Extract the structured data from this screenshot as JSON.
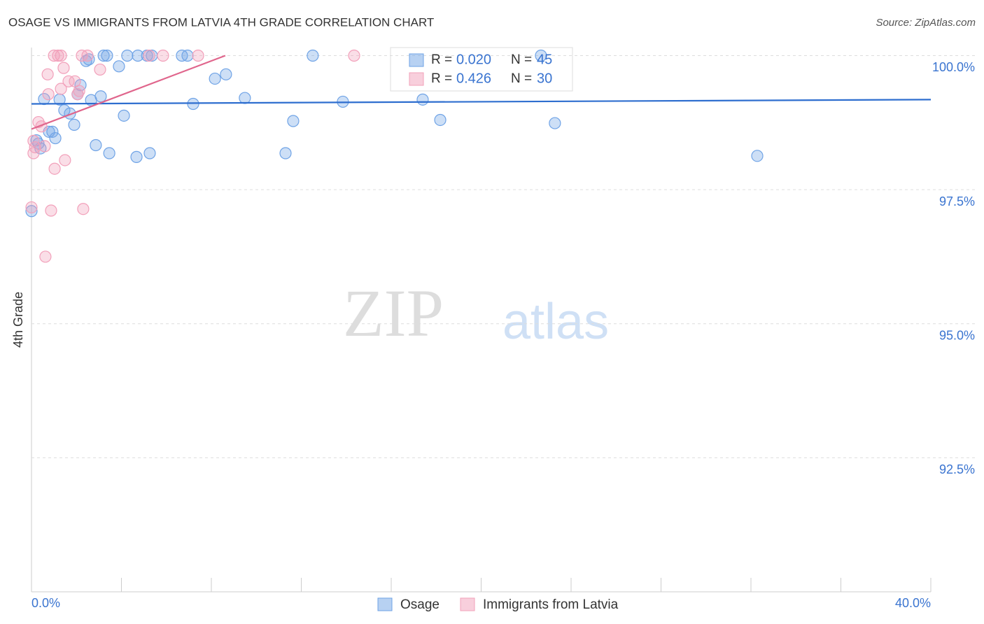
{
  "chart_data": {
    "type": "scatter",
    "title": "OSAGE VS IMMIGRANTS FROM LATVIA 4TH GRADE CORRELATION CHART",
    "source": "Source: ZipAtlas.com",
    "y_label": "4th Grade",
    "watermark": [
      "ZIP",
      "atlas"
    ],
    "stat_labels": [
      "R = ",
      "N = "
    ],
    "xlim": [
      0,
      40
    ],
    "ylim": [
      90,
      100.15
    ],
    "xticks": [
      {
        "value": 0,
        "label": "0.0%"
      },
      {
        "value": 4,
        "label": null
      },
      {
        "value": 8,
        "label": null
      },
      {
        "value": 12,
        "label": null
      },
      {
        "value": 16,
        "label": null
      },
      {
        "value": 20,
        "label": null
      },
      {
        "value": 24,
        "label": null
      },
      {
        "value": 28,
        "label": null
      },
      {
        "value": 32,
        "label": null
      },
      {
        "value": 36,
        "label": null
      },
      {
        "value": 40,
        "label": "40.0%"
      }
    ],
    "yticks": [
      {
        "value": 92.5,
        "label": "92.5%"
      },
      {
        "value": 95,
        "label": "95.0%"
      },
      {
        "value": 97.5,
        "label": "97.5%"
      },
      {
        "value": 100,
        "label": "100.0%"
      }
    ],
    "grid": true,
    "series": [
      {
        "name": "Osage",
        "color": "#6fa3e6",
        "line_color": "#2e6ecf",
        "r": "0.020",
        "n": 45,
        "x": [
          3.21,
          3.36,
          4.26,
          4.73,
          5.14,
          5.35,
          6.69,
          6.94,
          12.51,
          22.66,
          2.43,
          2.55,
          3.89,
          8.65,
          8.16,
          2.18,
          2.05,
          0.56,
          1.25,
          3.08,
          2.65,
          9.49,
          7.19,
          13.85,
          17.4,
          1.46,
          1.71,
          4.11,
          11.64,
          18.18,
          1.9,
          23.28,
          0.78,
          0.93,
          1.06,
          2.86,
          0.31,
          0.4,
          0.22,
          3.46,
          4.67,
          5.26,
          11.3,
          32.28,
          0
        ],
        "values": [
          100,
          100,
          100,
          100,
          100,
          100,
          100,
          100,
          100,
          100,
          99.9,
          99.93,
          99.8,
          99.65,
          99.57,
          99.45,
          99.28,
          99.19,
          99.18,
          99.24,
          99.17,
          99.21,
          99.1,
          99.14,
          99.18,
          98.98,
          98.92,
          98.88,
          98.78,
          98.8,
          98.71,
          98.74,
          98.58,
          98.58,
          98.46,
          98.33,
          98.36,
          98.27,
          98.42,
          98.18,
          98.11,
          98.18,
          98.18,
          98.13,
          97.1
        ],
        "trend_x": [
          0,
          40
        ],
        "trend_y": [
          99.1,
          99.18
        ]
      },
      {
        "name": "Immigrants from Latvia",
        "color": "#f2a0ba",
        "line_color": "#e0658c",
        "r": "0.426",
        "n": 30,
        "x": [
          1.0,
          1.18,
          1.31,
          2.24,
          2.49,
          5.23,
          5.85,
          7.41,
          14.35,
          0.72,
          1.43,
          3.05,
          1.65,
          1.93,
          1.31,
          0.75,
          2.05,
          2.12,
          0.31,
          0.44,
          0.09,
          0.16,
          0.59,
          0.09,
          1.49,
          1.03,
          0.87,
          2.3,
          0.62,
          0
        ],
        "values": [
          100,
          100,
          100,
          100,
          100,
          100,
          100,
          100,
          100,
          99.65,
          99.77,
          99.74,
          99.52,
          99.52,
          99.38,
          99.28,
          99.28,
          99.34,
          98.76,
          98.68,
          98.41,
          98.29,
          98.31,
          98.18,
          98.05,
          97.89,
          97.11,
          97.14,
          96.25,
          97.17
        ],
        "trend_x": [
          0,
          8.62
        ],
        "trend_y": [
          98.63,
          100
        ]
      }
    ]
  }
}
